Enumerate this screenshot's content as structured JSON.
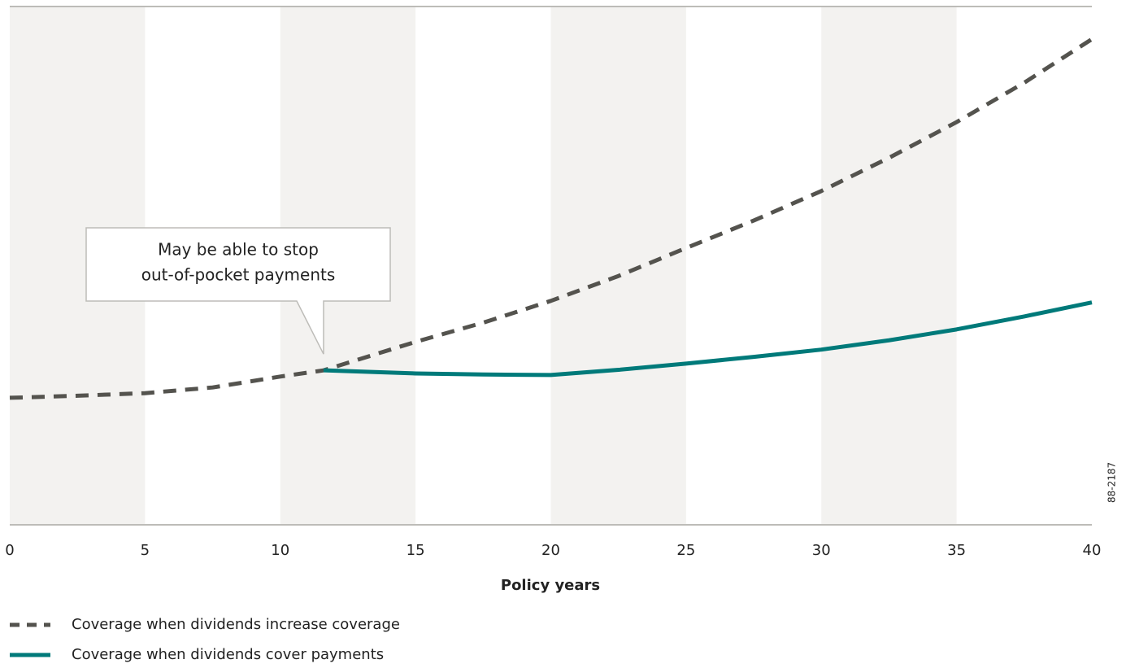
{
  "chart_data": {
    "type": "line",
    "annotation": [
      "May be able to stop",
      "out-of-pocket payments"
    ],
    "xlabel": "Policy years",
    "code": "88-2187",
    "x": [
      0,
      2.5,
      5,
      7.5,
      10,
      11.6,
      15,
      17.5,
      20,
      22.5,
      25,
      27.5,
      30,
      32.5,
      35,
      37.5,
      40
    ],
    "series": [
      {
        "name": "Coverage when dividends increase coverage",
        "color": "#54534e",
        "dashed": true,
        "values": [
          24.5,
          24.9,
          25.4,
          26.5,
          28.6,
          29.8,
          35.3,
          39.0,
          43.2,
          48.0,
          53.4,
          58.7,
          64.4,
          70.8,
          77.7,
          85.3,
          93.7
        ]
      },
      {
        "name": "Coverage when dividends cover payments",
        "color": "#007a7a",
        "dashed": false,
        "values": [
          null,
          null,
          null,
          null,
          null,
          29.8,
          29.2,
          29.0,
          28.9,
          29.9,
          31.1,
          32.4,
          33.8,
          35.6,
          37.7,
          40.2,
          42.9
        ]
      }
    ],
    "xlim": [
      0,
      40
    ],
    "xticks": [
      0,
      5,
      10,
      15,
      20,
      25,
      30,
      35,
      40
    ],
    "ylim": [
      0,
      100
    ]
  }
}
